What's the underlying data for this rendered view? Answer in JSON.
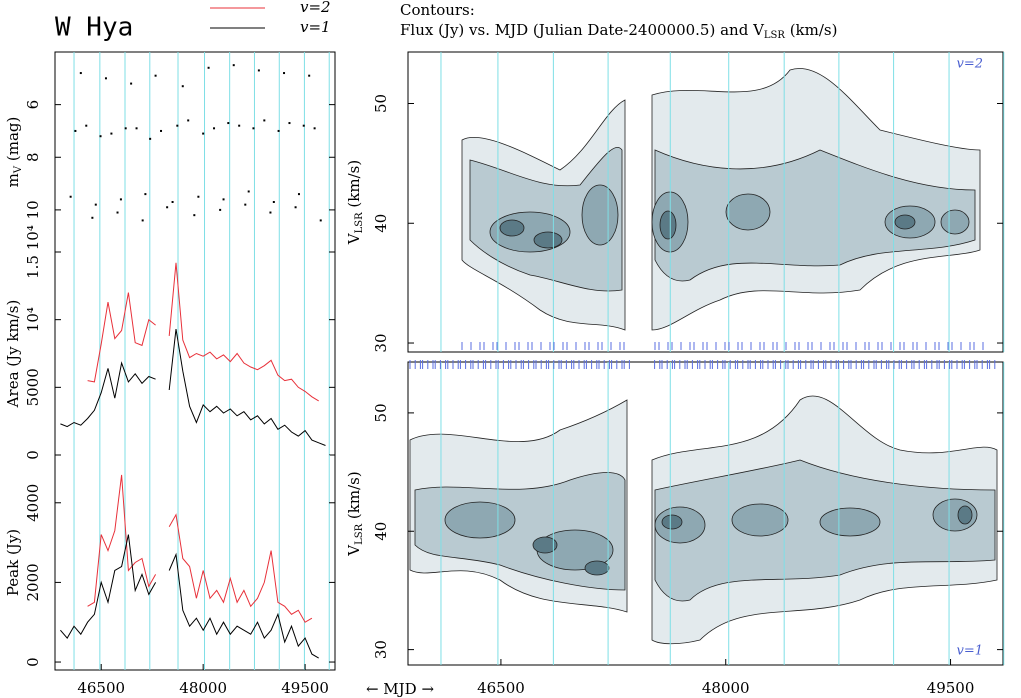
{
  "title": "W Hya",
  "contour_caption": "Contours:",
  "contour_title": [
    "Flux (Jy) vs. MJD (Julian  Date-2400000.5) and V",
    "LSR",
    " (km/s)"
  ],
  "xlabel": "← MJD →",
  "maxima": [
    46100,
    46480,
    46850,
    47215,
    47630,
    48020,
    48390,
    48755,
    49120,
    49490,
    49855
  ],
  "chart_data": [
    {
      "type": "scatter",
      "ylabel": {
        "main": "m",
        "sub": "V",
        "unit": " (mag)"
      },
      "x": [
        46050,
        46120,
        46200,
        46280,
        46370,
        46420,
        46490,
        46570,
        46650,
        46740,
        46790,
        46860,
        46940,
        47020,
        47110,
        47150,
        47220,
        47300,
        47380,
        47470,
        47550,
        47620,
        47700,
        47780,
        47870,
        47930,
        48000,
        48080,
        48160,
        48250,
        48300,
        48370,
        48450,
        48530,
        48620,
        48670,
        48740,
        48820,
        48900,
        48990,
        49040,
        49110,
        49190,
        49270,
        49360,
        49410,
        49480,
        49560,
        49640,
        49730
      ],
      "values": [
        9.5,
        7.0,
        4.8,
        6.8,
        10.3,
        9.8,
        7.2,
        5.0,
        7.1,
        10.1,
        9.6,
        6.9,
        5.2,
        6.9,
        10.4,
        9.4,
        7.3,
        4.9,
        7.0,
        9.9,
        9.7,
        6.8,
        5.3,
        6.6,
        10.2,
        9.5,
        7.1,
        4.6,
        6.9,
        10.0,
        9.6,
        6.7,
        4.5,
        6.8,
        9.8,
        9.3,
        6.9,
        4.7,
        6.6,
        10.1,
        9.7,
        7.0,
        4.8,
        6.7,
        9.9,
        9.4,
        6.8,
        4.9,
        6.9,
        10.4
      ],
      "color": "#000000",
      "xlim": [
        45820,
        49940
      ],
      "ylim": [
        11.6,
        4.0
      ],
      "yticks": [
        6,
        8,
        10
      ]
    },
    {
      "type": "line",
      "ylabel": "Area (Jy km/s)",
      "x": [
        45900,
        46000,
        46100,
        46200,
        46300,
        46400,
        46500,
        46600,
        46700,
        46800,
        46900,
        47000,
        47100,
        47200,
        47300,
        47400,
        47500,
        47600,
        47700,
        47800,
        47900,
        48000,
        48100,
        48200,
        48300,
        48400,
        48500,
        48600,
        48700,
        48800,
        48900,
        49000,
        49100,
        49200,
        49300,
        49400,
        49500,
        49600,
        49700,
        49800
      ],
      "series": [
        {
          "name": "v=2",
          "color": "#e8313a",
          "values": [
            null,
            null,
            null,
            null,
            5500,
            5400,
            8200,
            11300,
            8600,
            9200,
            12000,
            8300,
            8100,
            10000,
            9600,
            null,
            8800,
            14200,
            8500,
            7200,
            7500,
            7300,
            7600,
            7100,
            7400,
            6900,
            7500,
            6800,
            6500,
            6300,
            6600,
            7000,
            5900,
            5500,
            5600,
            5000,
            4700,
            4300,
            4000,
            null
          ]
        },
        {
          "name": "v=1",
          "color": "#000000",
          "values": [
            2300,
            2100,
            2400,
            2200,
            2700,
            3300,
            4600,
            6400,
            4200,
            6800,
            5400,
            6000,
            5300,
            5800,
            5600,
            null,
            4800,
            9300,
            6200,
            3600,
            2400,
            3700,
            3200,
            3600,
            3100,
            3400,
            2900,
            3200,
            2600,
            2900,
            2300,
            2700,
            1900,
            2200,
            1700,
            1400,
            1800,
            1100,
            900,
            700
          ]
        }
      ],
      "xlim": [
        45820,
        49940
      ],
      "ylim": [
        0,
        15000
      ],
      "yticks": [
        0,
        5000,
        {
          "value": 10000,
          "label": "10⁴"
        },
        {
          "value": 15000,
          "label": "1.5 10⁴"
        }
      ]
    },
    {
      "type": "line",
      "ylabel": "Peak (Jy)",
      "x": [
        45900,
        46000,
        46100,
        46200,
        46300,
        46400,
        46500,
        46600,
        46700,
        46800,
        46900,
        47000,
        47100,
        47200,
        47300,
        47400,
        47500,
        47600,
        47700,
        47800,
        47900,
        48000,
        48100,
        48200,
        48300,
        48400,
        48500,
        48600,
        48700,
        48800,
        48900,
        49000,
        49100,
        49200,
        49300,
        49400,
        49500,
        49600,
        49700,
        49800
      ],
      "series": [
        {
          "name": "v=2",
          "color": "#e8313a",
          "values": [
            null,
            null,
            null,
            null,
            1400,
            1500,
            3200,
            2800,
            3300,
            4700,
            2300,
            2500,
            2600,
            1900,
            2200,
            null,
            3400,
            3700,
            2600,
            2400,
            1600,
            2300,
            1600,
            1800,
            1500,
            2100,
            1500,
            1800,
            1400,
            1600,
            2000,
            2800,
            1500,
            1400,
            1200,
            1300,
            1000,
            1100,
            null,
            null
          ]
        },
        {
          "name": "v=1",
          "color": "#000000",
          "values": [
            800,
            600,
            900,
            700,
            1000,
            1200,
            2000,
            1500,
            2300,
            2400,
            3200,
            1800,
            2200,
            1700,
            2000,
            null,
            2300,
            2700,
            1300,
            900,
            1100,
            800,
            1100,
            700,
            1000,
            700,
            900,
            800,
            700,
            1000,
            600,
            800,
            1200,
            500,
            900,
            400,
            600,
            200,
            100,
            null
          ]
        }
      ],
      "xlim": [
        45820,
        49940
      ],
      "ylim": [
        -200,
        5200
      ],
      "yticks": [
        0,
        2000,
        4000
      ],
      "xticks": [
        46500,
        48000,
        49500
      ]
    },
    {
      "type": "contour",
      "label": "v=2",
      "ylabel": {
        "main": "V",
        "sub": "LSR",
        "unit": " (km/s)"
      },
      "xlim": [
        45880,
        49850
      ],
      "ylim": [
        29.25,
        54.3
      ],
      "yticks": [
        30,
        40,
        50
      ]
    },
    {
      "type": "contour",
      "label": "v=1",
      "ylabel": {
        "main": "V",
        "sub": "LSR",
        "unit": " (km/s)"
      },
      "xlim": [
        45880,
        49850
      ],
      "ylim": [
        28.7,
        54.3
      ],
      "yticks": [
        30,
        40,
        50
      ],
      "xticks": [
        46500,
        48000,
        49500
      ]
    }
  ]
}
